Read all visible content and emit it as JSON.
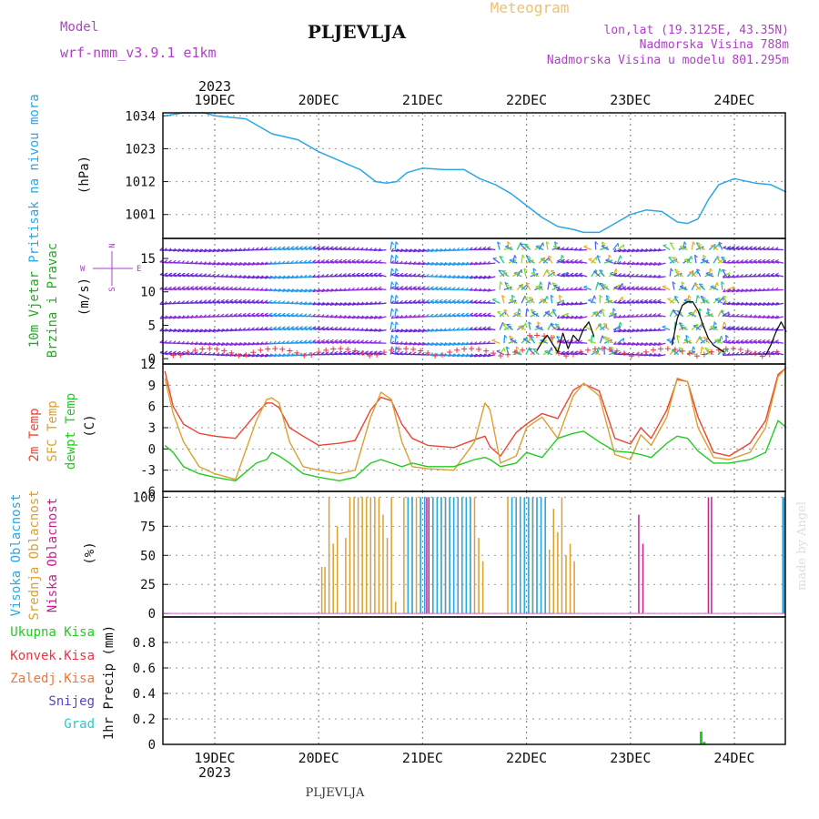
{
  "header": {
    "model_label": "Model",
    "model_name": "wrf-nmm_v3.9.1 e1km",
    "city": "PLJEVLJA",
    "meteogram": "Meteogram",
    "lonlat": "lon,lat (19.3125E, 43.35N)",
    "elevation": "Nadmorska Visina 788m",
    "model_elevation": "Nadmorska Visina u modelu 801.295m",
    "year": "2023",
    "footer_city": "PLJEVLJA",
    "credit": "made by Angel"
  },
  "colors": {
    "pressure": "#29a8e6",
    "t2m": "#ee4433",
    "sfc": "#dca030",
    "dew": "#22cc22",
    "high_cloud": "#29a8e6",
    "mid_cloud": "#dca030",
    "low_cloud": "#cc2090",
    "wind_text": "#22aa22",
    "violet": "#b040c8",
    "grad": "#22cccc",
    "snow": "#5544cc",
    "conv": "#ee3344",
    "frz": "#ee7733"
  },
  "chart_data": [
    {
      "type": "line",
      "panel": "pressure",
      "ylabel_1": "Pritisak na nivou mora",
      "ylabel_2": "(hPa)",
      "x_tick_labels": [
        "19DEC",
        "20DEC",
        "21DEC",
        "22DEC",
        "23DEC",
        "24DEC"
      ],
      "x_ticks_day": [
        1,
        2,
        3,
        4,
        5,
        6
      ],
      "xlim": [
        0.52,
        6.5
      ],
      "ylim": [
        993,
        1035
      ],
      "yticks": [
        1001,
        1012,
        1023,
        1034
      ],
      "grid": true,
      "series": [
        {
          "x": [
            0.52,
            0.7,
            0.9,
            1.0,
            1.3,
            1.55,
            1.8,
            2.0,
            2.2,
            2.4,
            2.55,
            2.65,
            2.75,
            2.85,
            3.0,
            3.2,
            3.4,
            3.55,
            3.7,
            3.85,
            4.0,
            4.15,
            4.3,
            4.45,
            4.55,
            4.7,
            4.85,
            5.0,
            5.15,
            5.3,
            5.45,
            5.55,
            5.65,
            5.75,
            5.85,
            6.0,
            6.2,
            6.35,
            6.5
          ],
          "values": [
            1034,
            1035,
            1035,
            1034,
            1033,
            1028,
            1026,
            1022,
            1019,
            1016,
            1012,
            1011.5,
            1012,
            1015,
            1016.5,
            1016,
            1016,
            1013,
            1011,
            1008,
            1004,
            1000,
            997,
            996,
            995,
            995,
            998,
            1001,
            1002.5,
            1002,
            998.5,
            998,
            999.5,
            1006,
            1011,
            1013,
            1011.5,
            1011,
            1008.5
          ]
        }
      ]
    },
    {
      "type": "line",
      "panel": "wind",
      "ylabel_1": "10m Vjetar",
      "ylabel_2": "Brzina i Pravac",
      "ylabel_3": "(m/s)",
      "compass": {
        "n": "N",
        "s": "S",
        "e": "E",
        "w": "W"
      },
      "ylim": [
        -0.8,
        18
      ],
      "yticks": [
        0,
        5,
        10,
        15
      ],
      "arrow_rows": [
        0.6,
        2.3,
        4.3,
        6.3,
        8.3,
        10.3,
        12.3,
        14.3,
        16.3
      ],
      "series": [
        {
          "name": "",
          "x": [
            4.1,
            4.15,
            4.2,
            4.25,
            4.3,
            4.35,
            4.4,
            4.45,
            4.5,
            4.55,
            4.6,
            4.65
          ],
          "values": [
            1.2,
            2.5,
            3.5,
            2.2,
            1,
            3.8,
            1.5,
            3.5,
            2.6,
            4.5,
            5.5,
            3.3
          ]
        },
        {
          "name": "",
          "x": [
            5.4,
            5.45,
            5.5,
            5.55,
            5.6,
            5.65,
            5.7,
            5.75,
            5.8,
            5.85,
            5.9
          ],
          "values": [
            2,
            6,
            8,
            8.5,
            8.5,
            7.2,
            5,
            3,
            2,
            1.5,
            1
          ]
        },
        {
          "name": "",
          "x": [
            6.3,
            6.35,
            6.4,
            6.45,
            6.5
          ],
          "values": [
            0.5,
            2,
            4,
            5.5,
            4
          ]
        }
      ]
    },
    {
      "type": "line",
      "panel": "temperature",
      "ylabel_1": "2m Temp",
      "ylabel_2": "SFC Temp",
      "ylabel_3": "dewpt Temp",
      "ylabel_4": "(C)",
      "ylim": [
        -6,
        12
      ],
      "yticks": [
        -6,
        -3,
        0,
        3,
        6,
        9,
        12
      ],
      "series": [
        {
          "name": "2m Temp",
          "x": [
            0.52,
            0.6,
            0.7,
            0.85,
            1.0,
            1.2,
            1.4,
            1.5,
            1.55,
            1.62,
            1.72,
            1.85,
            2.0,
            2.2,
            2.35,
            2.5,
            2.6,
            2.7,
            2.8,
            2.9,
            3.05,
            3.3,
            3.5,
            3.6,
            3.65,
            3.75,
            3.9,
            4.0,
            4.15,
            4.3,
            4.45,
            4.55,
            4.7,
            4.85,
            5.0,
            5.1,
            5.2,
            5.35,
            5.45,
            5.55,
            5.65,
            5.8,
            5.95,
            6.15,
            6.3,
            6.42,
            6.5
          ],
          "values": [
            11,
            6,
            3.5,
            2.2,
            1.8,
            1.5,
            5,
            6.5,
            6.5,
            5.8,
            3,
            1.8,
            0.5,
            0.8,
            1.2,
            5.5,
            7.3,
            6.8,
            3.5,
            1.5,
            0.5,
            0.2,
            1.3,
            1.8,
            0.3,
            -1,
            2.3,
            3.5,
            5,
            4.3,
            8.3,
            9.2,
            8.2,
            1.5,
            0.7,
            3,
            1.5,
            5.5,
            9.8,
            9.5,
            4.5,
            -0.5,
            -1,
            0.8,
            4,
            10.5,
            11.5
          ]
        },
        {
          "name": "SFC Temp",
          "x": [
            0.52,
            0.6,
            0.7,
            0.85,
            1.0,
            1.2,
            1.4,
            1.5,
            1.55,
            1.62,
            1.72,
            1.85,
            2.0,
            2.2,
            2.35,
            2.5,
            2.6,
            2.7,
            2.8,
            2.9,
            3.05,
            3.3,
            3.5,
            3.6,
            3.65,
            3.75,
            3.9,
            4.0,
            4.15,
            4.3,
            4.45,
            4.55,
            4.7,
            4.85,
            5.0,
            5.1,
            5.2,
            5.35,
            5.45,
            5.55,
            5.65,
            5.8,
            5.95,
            6.15,
            6.3,
            6.42,
            6.5
          ],
          "values": [
            10,
            5,
            1,
            -2.5,
            -3.5,
            -4.3,
            4,
            7,
            7.2,
            6.5,
            1,
            -2.5,
            -3,
            -3.5,
            -3,
            4.5,
            8,
            7,
            1,
            -2.5,
            -2.8,
            -3,
            1,
            6.5,
            5.5,
            -2,
            -1,
            3,
            4.5,
            1.5,
            7.5,
            9.3,
            7.5,
            -0.8,
            -1.5,
            2,
            0.5,
            4.5,
            10,
            9.5,
            3,
            -1.2,
            -1.5,
            -0.5,
            3,
            10.2,
            11.5
          ]
        },
        {
          "name": "dewpt Temp",
          "x": [
            0.52,
            0.6,
            0.7,
            0.85,
            1.0,
            1.2,
            1.4,
            1.5,
            1.55,
            1.62,
            1.72,
            1.85,
            2.0,
            2.2,
            2.35,
            2.5,
            2.6,
            2.7,
            2.8,
            2.9,
            3.05,
            3.3,
            3.5,
            3.6,
            3.65,
            3.75,
            3.9,
            4.0,
            4.15,
            4.3,
            4.45,
            4.55,
            4.7,
            4.85,
            5.0,
            5.1,
            5.2,
            5.35,
            5.45,
            5.55,
            5.65,
            5.8,
            5.95,
            6.15,
            6.3,
            6.42,
            6.5
          ],
          "values": [
            0.5,
            -0.5,
            -2.5,
            -3.5,
            -4,
            -4.5,
            -2,
            -1.5,
            -0.5,
            -1,
            -2,
            -3.5,
            -4,
            -4.5,
            -4,
            -2,
            -1.5,
            -2,
            -2.5,
            -2,
            -2.5,
            -2.5,
            -1.5,
            -1.2,
            -1.5,
            -2.5,
            -2,
            -0.5,
            -1.2,
            1.5,
            2.2,
            2.5,
            1,
            -0.3,
            -0.5,
            -0.8,
            -1.2,
            0.8,
            1.8,
            1.5,
            -0.3,
            -2,
            -2,
            -1.5,
            -0.5,
            4,
            3
          ]
        }
      ]
    },
    {
      "type": "bar",
      "panel": "clouds",
      "ylabel_1": "Visoka Oblacnost",
      "ylabel_2": "Srednja Oblacnost",
      "ylabel_3": "Niska Oblacnost",
      "ylabel_4": "(%)",
      "ylim": [
        -3,
        105
      ],
      "yticks": [
        0,
        25,
        50,
        75,
        100
      ],
      "series": [
        {
          "name": "Srednja Oblacnost",
          "x": [
            2.03,
            2.06,
            2.1,
            2.14,
            2.18,
            2.26,
            2.3,
            2.34,
            2.38,
            2.42,
            2.46,
            2.5,
            2.54,
            2.58,
            2.62,
            2.66,
            2.7,
            2.74,
            2.82,
            2.86,
            2.9,
            2.94,
            2.98,
            3.02,
            3.06,
            3.1,
            3.14,
            3.18,
            3.22,
            3.26,
            3.3,
            3.34,
            3.38,
            3.42,
            3.46,
            3.5,
            3.54,
            3.58,
            3.82,
            3.86,
            3.9,
            3.94,
            3.98,
            4.02,
            4.06,
            4.1,
            4.14,
            4.18,
            4.22,
            4.26,
            4.3,
            4.34,
            4.38,
            4.42,
            4.46
          ],
          "values": [
            40,
            40,
            100,
            60,
            75,
            65,
            100,
            100,
            100,
            100,
            100,
            100,
            100,
            100,
            85,
            65,
            100,
            10,
            100,
            100,
            100,
            100,
            100,
            100,
            100,
            100,
            100,
            100,
            100,
            100,
            100,
            100,
            100,
            100,
            100,
            100,
            65,
            45,
            100,
            100,
            100,
            100,
            100,
            100,
            100,
            100,
            100,
            100,
            55,
            90,
            70,
            100,
            50,
            60,
            45
          ]
        },
        {
          "name": "Visoka Oblacnost",
          "x": [
            2.86,
            2.9,
            2.98,
            3.02,
            3.06,
            3.1,
            3.14,
            3.18,
            3.22,
            3.26,
            3.3,
            3.34,
            3.38,
            3.42,
            3.46,
            3.86,
            3.9,
            3.94,
            3.98,
            4.02,
            4.06,
            4.1,
            4.14,
            4.18,
            6.47,
            6.48
          ],
          "values": [
            100,
            100,
            100,
            100,
            100,
            100,
            100,
            100,
            100,
            100,
            100,
            100,
            100,
            100,
            100,
            100,
            100,
            100,
            100,
            100,
            100,
            100,
            100,
            100,
            100,
            100
          ]
        },
        {
          "name": "Niska Oblacnost",
          "x": [
            3.04,
            3.06,
            5.08,
            5.12,
            5.75,
            5.78
          ],
          "values": [
            100,
            100,
            85,
            60,
            100,
            100
          ]
        }
      ]
    },
    {
      "type": "bar",
      "panel": "precipitation",
      "ylabel": "1hr Precip (mm)",
      "legend": [
        "Ukupna Kisa",
        "Konvek.Kisa",
        "Zaledj.Kisa",
        "Snijeg",
        "Grad"
      ],
      "ylim": [
        0,
        1.0
      ],
      "yticks": [
        0,
        0.2,
        0.4,
        0.6,
        0.8
      ],
      "series": [
        {
          "name": "Ukupna Kisa",
          "x": [
            5.68,
            5.71
          ],
          "values": [
            0.1,
            0.02
          ]
        }
      ]
    }
  ]
}
